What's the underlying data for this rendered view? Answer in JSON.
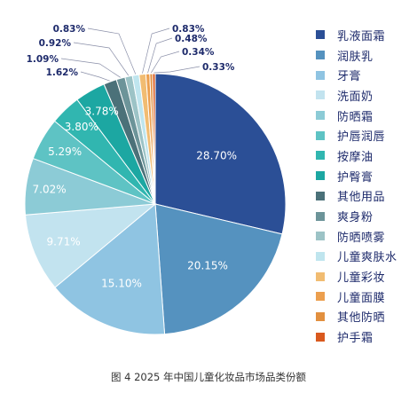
{
  "caption": "图 4 2025 年中国儿童化妆品市场品类份额",
  "chart_data": {
    "type": "pie",
    "title": "",
    "start_angle_deg": 90,
    "direction": "clockwise",
    "legend_position": "right",
    "slices": [
      {
        "label": "乳液面霜",
        "value": 28.7,
        "display": "28.70%",
        "color": "#2b4f96"
      },
      {
        "label": "润肤乳",
        "value": 20.15,
        "display": "20.15%",
        "color": "#5592bf"
      },
      {
        "label": "牙膏",
        "value": 15.1,
        "display": "15.10%",
        "color": "#8fc4e2"
      },
      {
        "label": "洗面奶",
        "value": 9.71,
        "display": "9.71%",
        "color": "#c2e3ef"
      },
      {
        "label": "防晒霜",
        "value": 7.02,
        "display": "7.02%",
        "color": "#8ccbd6"
      },
      {
        "label": "护唇润唇",
        "value": 5.29,
        "display": "5.29%",
        "color": "#5ec3c4"
      },
      {
        "label": "按摩油",
        "value": 3.8,
        "display": "3.80%",
        "color": "#31b6b0"
      },
      {
        "label": "护臀膏",
        "value": 3.78,
        "display": "3.78%",
        "color": "#1ca7a2"
      },
      {
        "label": "其他用品",
        "value": 1.62,
        "display": "1.62%",
        "color": "#4b7179"
      },
      {
        "label": "爽身粉",
        "value": 1.09,
        "display": "1.09%",
        "color": "#6c9499"
      },
      {
        "label": "防晒喷雾",
        "value": 0.92,
        "display": "0.92%",
        "color": "#9cc3c6"
      },
      {
        "label": "儿童爽肤水",
        "value": 0.83,
        "display": "0.83%",
        "color": "#bfe5ee"
      },
      {
        "label": "儿童彩妆",
        "value": 0.83,
        "display": "0.83%",
        "color": "#f1bc72"
      },
      {
        "label": "儿童面膜",
        "value": 0.48,
        "display": "0.48%",
        "color": "#ec9f4e"
      },
      {
        "label": "其他防晒",
        "value": 0.34,
        "display": "0.34%",
        "color": "#e2903f"
      },
      {
        "label": "护手霜",
        "value": 0.33,
        "display": "0.33%",
        "color": "#d9591e"
      }
    ]
  }
}
